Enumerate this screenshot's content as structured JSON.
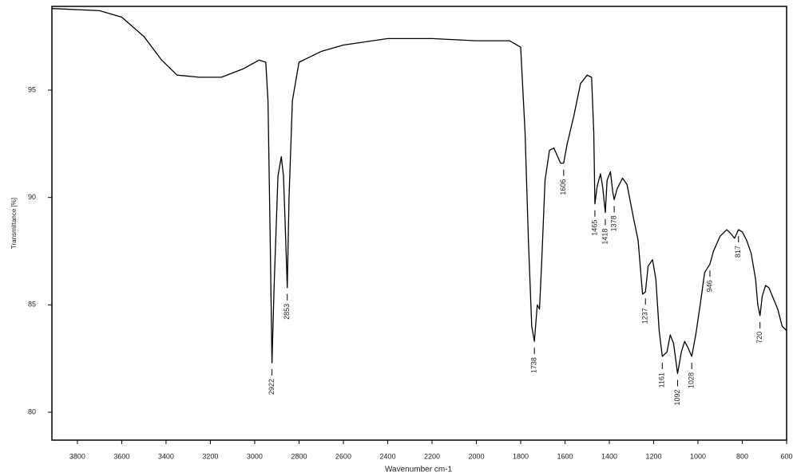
{
  "chart_data": {
    "type": "line",
    "xlabel": "Wavenumber cm-1",
    "ylabel": "Transmittance [%]",
    "xlim": [
      3915,
      600
    ],
    "ylim": [
      78.7,
      98.9
    ],
    "xticks": [
      3800,
      3600,
      3400,
      3200,
      3000,
      2800,
      2600,
      2400,
      2200,
      2000,
      1800,
      1600,
      1400,
      1200,
      1000,
      800,
      600
    ],
    "yticks": [
      80,
      85,
      90,
      95
    ],
    "color": "#000000",
    "x": [
      3915,
      3700,
      3600,
      3500,
      3420,
      3350,
      3250,
      3150,
      3050,
      2980,
      2950,
      2940,
      2930,
      2922,
      2912,
      2895,
      2880,
      2870,
      2860,
      2853,
      2845,
      2830,
      2800,
      2700,
      2600,
      2400,
      2200,
      2000,
      1850,
      1800,
      1780,
      1765,
      1750,
      1738,
      1725,
      1715,
      1705,
      1690,
      1670,
      1650,
      1620,
      1606,
      1590,
      1560,
      1530,
      1500,
      1480,
      1470,
      1465,
      1455,
      1440,
      1430,
      1418,
      1410,
      1395,
      1385,
      1378,
      1365,
      1340,
      1320,
      1290,
      1270,
      1250,
      1237,
      1225,
      1205,
      1190,
      1175,
      1161,
      1140,
      1125,
      1110,
      1092,
      1075,
      1060,
      1045,
      1028,
      1010,
      990,
      970,
      946,
      930,
      900,
      870,
      850,
      835,
      817,
      800,
      780,
      760,
      740,
      730,
      720,
      710,
      695,
      680,
      660,
      640,
      620,
      600
    ],
    "values": [
      98.8,
      98.7,
      98.4,
      97.5,
      96.4,
      95.7,
      95.6,
      95.6,
      96.0,
      96.4,
      96.3,
      94.5,
      88,
      82.3,
      86,
      91,
      91.9,
      91,
      88,
      85.8,
      90,
      94.5,
      96.3,
      96.8,
      97.1,
      97.4,
      97.4,
      97.3,
      97.3,
      97.0,
      93,
      88,
      84,
      83.3,
      85,
      84.8,
      87,
      90.8,
      92.2,
      92.3,
      91.6,
      91.6,
      92.5,
      93.8,
      95.3,
      95.7,
      95.6,
      93,
      89.7,
      90.5,
      91.1,
      90.5,
      89.3,
      90.8,
      91.2,
      90.3,
      89.9,
      90.4,
      90.9,
      90.6,
      89,
      88,
      85.5,
      85.6,
      86.8,
      87.1,
      86.2,
      83.8,
      82.6,
      82.8,
      83.6,
      83.2,
      81.8,
      82.8,
      83.3,
      83.0,
      82.6,
      83.6,
      85,
      86.5,
      86.9,
      87.5,
      88.2,
      88.5,
      88.3,
      88.1,
      88.5,
      88.4,
      88.0,
      87.4,
      86.2,
      85.0,
      84.5,
      85.4,
      85.9,
      85.8,
      85.3,
      84.8,
      84.0,
      83.8
    ],
    "peaks": [
      2922,
      2853,
      1738,
      1606,
      1465,
      1418,
      1378,
      1237,
      1161,
      1092,
      1028,
      946,
      817,
      720
    ]
  }
}
